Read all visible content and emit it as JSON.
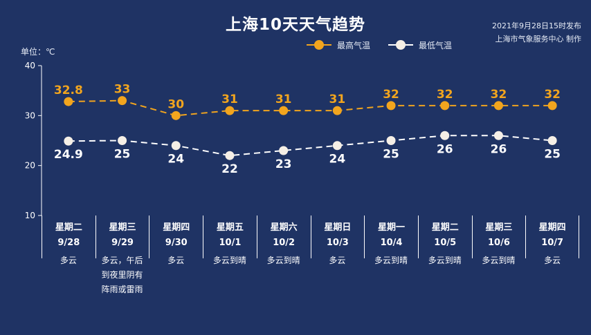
{
  "header": {
    "title": "上海10天天气趋势",
    "publish_line1": "2021年9月28日15时发布",
    "publish_line2": "上海市气象服务中心 制作",
    "unit_label": "单位：℃"
  },
  "colors": {
    "background": "#1f3364",
    "high": "#f2a51e",
    "low": "#ffffff"
  },
  "chart_data": {
    "type": "line",
    "title": "上海10天天气趋势",
    "ylabel": "单位：℃",
    "ylim": [
      10,
      40
    ],
    "yticks": [
      10,
      20,
      30,
      40
    ],
    "grid": false,
    "legend_position": "top-right",
    "categories": [
      "9/28",
      "9/29",
      "9/30",
      "10/1",
      "10/2",
      "10/3",
      "10/4",
      "10/5",
      "10/6",
      "10/7"
    ],
    "weekdays": [
      "星期二",
      "星期三",
      "星期四",
      "星期五",
      "星期六",
      "星期日",
      "星期一",
      "星期二",
      "星期三",
      "星期四"
    ],
    "weather": [
      "多云",
      "多云，午后到夜里阴有阵雨或雷雨",
      "多云",
      "多云到晴",
      "多云到晴",
      "多云",
      "多云到晴",
      "多云到晴",
      "多云到晴",
      "多云"
    ],
    "series": [
      {
        "name": "最高气温",
        "values": [
          32.8,
          33,
          30,
          31,
          31,
          31,
          32,
          32,
          32,
          32
        ]
      },
      {
        "name": "最低气温",
        "values": [
          24.9,
          25,
          24,
          22,
          23,
          24,
          25,
          26,
          26,
          25
        ]
      }
    ]
  }
}
